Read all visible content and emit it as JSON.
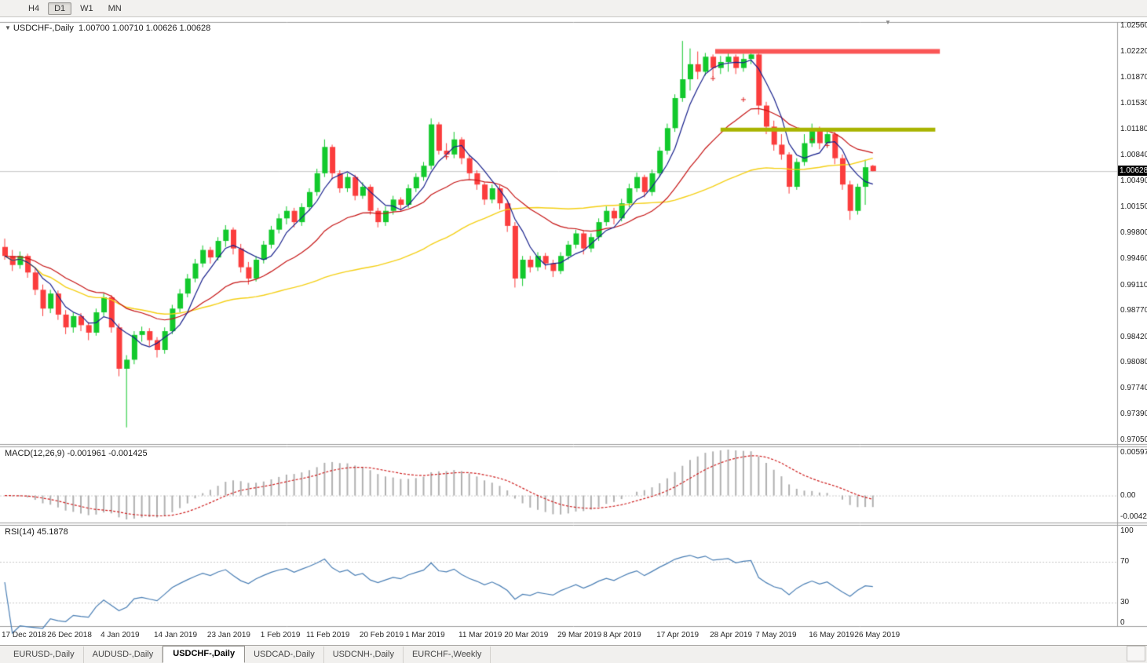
{
  "toolbar": {
    "timeframes": [
      {
        "label": "H4",
        "active": false
      },
      {
        "label": "D1",
        "active": true
      },
      {
        "label": "W1",
        "active": false
      },
      {
        "label": "MN",
        "active": false
      }
    ]
  },
  "chart_data": {
    "type": "candlestick",
    "symbol": "USDCHF",
    "timeframe": "Daily",
    "main_label": "USDCHF-,Daily  1.00700 1.00710 1.00626 1.00628",
    "ohlc_label": {
      "open": "1.00700",
      "high": "1.00710",
      "low": "1.00626",
      "close": "1.00628"
    },
    "current_price": "1.00628",
    "ylim": [
      0.9705,
      1.0256
    ],
    "price_ticks": [
      "1.02560",
      "1.02220",
      "1.01870",
      "1.01530",
      "1.01180",
      "1.00840",
      "1.00490",
      "1.00150",
      "0.99800",
      "0.99460",
      "0.99110",
      "0.98770",
      "0.98420",
      "0.98080",
      "0.97740",
      "0.97390",
      "0.97050"
    ],
    "x_labels": [
      "17 Dec 2018",
      "26 Dec 2018",
      "4 Jan 2019",
      "14 Jan 2019",
      "23 Jan 2019",
      "1 Feb 2019",
      "11 Feb 2019",
      "20 Feb 2019",
      "1 Mar 2019",
      "11 Mar 2019",
      "20 Mar 2019",
      "29 Mar 2019",
      "8 Apr 2019",
      "17 Apr 2019",
      "28 Apr 2019",
      "7 May 2019",
      "16 May 2019",
      "26 May 2019"
    ],
    "x_label_indices": [
      0,
      6,
      13,
      20,
      27,
      34,
      40,
      47,
      53,
      60,
      66,
      73,
      79,
      86,
      93,
      99,
      106,
      112
    ],
    "candles": [
      [
        0.9962,
        0.9973,
        0.9945,
        0.995
      ],
      [
        0.995,
        0.9958,
        0.993,
        0.9938
      ],
      [
        0.9938,
        0.9956,
        0.9933,
        0.995
      ],
      [
        0.995,
        0.9953,
        0.9921,
        0.9928
      ],
      [
        0.9928,
        0.9934,
        0.9898,
        0.9905
      ],
      [
        0.9905,
        0.9912,
        0.987,
        0.988
      ],
      [
        0.988,
        0.9905,
        0.9874,
        0.99
      ],
      [
        0.99,
        0.9904,
        0.9865,
        0.9872
      ],
      [
        0.9872,
        0.9878,
        0.9846,
        0.9855
      ],
      [
        0.9855,
        0.9875,
        0.9848,
        0.987
      ],
      [
        0.987,
        0.9874,
        0.985,
        0.9858
      ],
      [
        0.9858,
        0.9862,
        0.9838,
        0.9848
      ],
      [
        0.9848,
        0.988,
        0.9844,
        0.9875
      ],
      [
        0.9875,
        0.99,
        0.987,
        0.9895
      ],
      [
        0.9895,
        0.9898,
        0.9848,
        0.9855
      ],
      [
        0.9855,
        0.986,
        0.979,
        0.98
      ],
      [
        0.98,
        0.9818,
        0.9722,
        0.9812
      ],
      [
        0.9812,
        0.985,
        0.9806,
        0.9845
      ],
      [
        0.9845,
        0.9856,
        0.9836,
        0.985
      ],
      [
        0.985,
        0.9854,
        0.983,
        0.9838
      ],
      [
        0.9838,
        0.9842,
        0.9815,
        0.9825
      ],
      [
        0.9825,
        0.9855,
        0.982,
        0.985
      ],
      [
        0.985,
        0.9885,
        0.9846,
        0.988
      ],
      [
        0.988,
        0.9906,
        0.9875,
        0.99
      ],
      [
        0.99,
        0.9926,
        0.9895,
        0.992
      ],
      [
        0.992,
        0.9946,
        0.9915,
        0.994
      ],
      [
        0.994,
        0.9964,
        0.9935,
        0.9958
      ],
      [
        0.9958,
        0.9962,
        0.994,
        0.9948
      ],
      [
        0.9948,
        0.9975,
        0.9944,
        0.997
      ],
      [
        0.997,
        0.9991,
        0.9962,
        0.9985
      ],
      [
        0.9985,
        0.9988,
        0.9952,
        0.996
      ],
      [
        0.996,
        0.9966,
        0.9928,
        0.9935
      ],
      [
        0.9935,
        0.9942,
        0.9912,
        0.992
      ],
      [
        0.992,
        0.995,
        0.9916,
        0.9945
      ],
      [
        0.9945,
        0.997,
        0.994,
        0.9965
      ],
      [
        0.9965,
        0.999,
        0.996,
        0.9985
      ],
      [
        0.9985,
        1.0006,
        0.998,
        1.0
      ],
      [
        1.0,
        1.0016,
        0.9992,
        1.001
      ],
      [
        1.001,
        1.0014,
        0.9988,
        0.9995
      ],
      [
        0.9995,
        1.002,
        0.999,
        1.0015
      ],
      [
        1.0015,
        1.004,
        1.001,
        1.0035
      ],
      [
        1.0035,
        1.0066,
        1.003,
        1.006
      ],
      [
        1.006,
        1.0105,
        1.0055,
        1.0095
      ],
      [
        1.0095,
        1.0098,
        1.0052,
        1.006
      ],
      [
        1.006,
        1.0064,
        1.0034,
        1.004
      ],
      [
        1.004,
        1.006,
        1.0035,
        1.0055
      ],
      [
        1.0055,
        1.0058,
        1.0024,
        1.003
      ],
      [
        1.003,
        1.0048,
        1.0026,
        1.0042
      ],
      [
        1.0042,
        1.0045,
        1.0005,
        1.001
      ],
      [
        1.001,
        1.0014,
        0.9988,
        0.9995
      ],
      [
        0.9995,
        1.0016,
        0.999,
        1.001
      ],
      [
        1.001,
        1.003,
        1.0005,
        1.0025
      ],
      [
        1.0025,
        1.0028,
        1.001,
        1.0018
      ],
      [
        1.0018,
        1.0045,
        1.0014,
        1.004
      ],
      [
        1.004,
        1.006,
        1.0035,
        1.0055
      ],
      [
        1.0055,
        1.0075,
        1.005,
        1.007
      ],
      [
        1.007,
        1.0133,
        1.0065,
        1.0125
      ],
      [
        1.0125,
        1.0128,
        1.0085,
        1.009
      ],
      [
        1.009,
        1.01,
        1.0078,
        1.0085
      ],
      [
        1.0085,
        1.0115,
        1.008,
        1.0105
      ],
      [
        1.0105,
        1.0108,
        1.0072,
        1.008
      ],
      [
        1.008,
        1.0085,
        1.0052,
        1.006
      ],
      [
        1.006,
        1.0064,
        1.0038,
        1.0045
      ],
      [
        1.0045,
        1.0048,
        1.0018,
        1.0025
      ],
      [
        1.0025,
        1.0045,
        1.002,
        1.004
      ],
      [
        1.004,
        1.0044,
        1.0012,
        1.002
      ],
      [
        1.002,
        1.0024,
        0.9982,
        0.999
      ],
      [
        0.999,
        0.9995,
        0.9908,
        0.992
      ],
      [
        0.992,
        0.995,
        0.991,
        0.9945
      ],
      [
        0.9945,
        0.995,
        0.9928,
        0.9935
      ],
      [
        0.9935,
        0.9955,
        0.993,
        0.995
      ],
      [
        0.995,
        0.9954,
        0.9932,
        0.994
      ],
      [
        0.994,
        0.9945,
        0.9922,
        0.993
      ],
      [
        0.993,
        0.9955,
        0.9926,
        0.995
      ],
      [
        0.995,
        0.997,
        0.9945,
        0.9965
      ],
      [
        0.9965,
        0.9985,
        0.996,
        0.998
      ],
      [
        0.998,
        0.9984,
        0.9952,
        0.996
      ],
      [
        0.996,
        0.998,
        0.9955,
        0.9975
      ],
      [
        0.9975,
        1.0,
        0.997,
        0.9995
      ],
      [
        0.9995,
        1.0016,
        0.999,
        1.001
      ],
      [
        1.001,
        1.0014,
        0.9992,
        1.0
      ],
      [
        1.0,
        1.0026,
        0.9996,
        1.002
      ],
      [
        1.002,
        1.0046,
        1.0015,
        1.004
      ],
      [
        1.004,
        1.0061,
        1.0035,
        1.0055
      ],
      [
        1.0055,
        1.0058,
        1.0028,
        1.0035
      ],
      [
        1.0035,
        1.0065,
        1.003,
        1.006
      ],
      [
        1.006,
        1.0095,
        1.0055,
        1.009
      ],
      [
        1.009,
        1.0126,
        1.0085,
        1.012
      ],
      [
        1.012,
        1.0165,
        1.0115,
        1.016
      ],
      [
        1.016,
        1.0236,
        1.0155,
        1.0185
      ],
      [
        1.0185,
        1.0226,
        1.017,
        1.0205
      ],
      [
        1.0205,
        1.0222,
        1.0185,
        1.0195
      ],
      [
        1.0195,
        1.022,
        1.019,
        1.0215
      ],
      [
        1.0215,
        1.0218,
        1.0188,
        1.02
      ],
      [
        1.02,
        1.0216,
        1.0192,
        1.0208
      ],
      [
        1.0208,
        1.022,
        1.0195,
        1.0215
      ],
      [
        1.0215,
        1.0218,
        1.0192,
        1.02
      ],
      [
        1.02,
        1.0219,
        1.0195,
        1.0212
      ],
      [
        1.0212,
        1.0224,
        1.0205,
        1.0218
      ],
      [
        1.0218,
        1.0222,
        1.0138,
        1.015
      ],
      [
        1.015,
        1.0155,
        1.0112,
        1.0122
      ],
      [
        1.0122,
        1.013,
        1.009,
        1.0098
      ],
      [
        1.0098,
        1.0112,
        1.0078,
        1.0085
      ],
      [
        1.0085,
        1.0088,
        1.0033,
        1.0042
      ],
      [
        1.0042,
        1.008,
        1.0038,
        1.0075
      ],
      [
        1.0075,
        1.0112,
        1.007,
        1.01
      ],
      [
        1.01,
        1.0126,
        1.0095,
        1.0118
      ],
      [
        1.0118,
        1.0122,
        1.0092,
        1.01
      ],
      [
        1.01,
        1.0118,
        1.0094,
        1.0112
      ],
      [
        1.0112,
        1.0115,
        1.0072,
        1.008
      ],
      [
        1.008,
        1.0085,
        1.0038,
        1.0045
      ],
      [
        1.0045,
        1.005,
        0.9998,
        1.001
      ],
      [
        1.001,
        1.0046,
        1.0005,
        1.0042
      ],
      [
        1.0042,
        1.0078,
        1.0018,
        1.0068
      ],
      [
        1.007,
        1.0071,
        1.00626,
        1.00628
      ]
    ],
    "colors": {
      "up": "#12c92c",
      "down": "#fb3d3d",
      "ma_fast": "#17208c",
      "ma_mid": "#c61414",
      "ma_slow": "#f5d016",
      "current_line": "#c6c6c6",
      "panel_border": "#9c9c9c"
    },
    "moving_averages": [
      {
        "name": "fast",
        "type": "sma",
        "period": 5,
        "color": "#17208c"
      },
      {
        "name": "mid",
        "type": "ema",
        "period": 20,
        "color": "#c61414"
      },
      {
        "name": "slow",
        "type": "sma",
        "period": 45,
        "color": "#f5d016"
      }
    ],
    "hlines": [
      {
        "name": "resistance",
        "price": 1.0222,
        "i0": 93.3,
        "i1": 122.8,
        "color": "#fa5555",
        "width": 6
      },
      {
        "name": "support",
        "price": 1.0118,
        "i0": 94.0,
        "i1": 122.2,
        "color": "#a9b400",
        "width": 5
      }
    ],
    "plus_markers": [
      {
        "i": 58,
        "p": 1.0082
      },
      {
        "i": 93,
        "p": 1.0186
      },
      {
        "i": 97,
        "p": 1.0158
      },
      {
        "i": 106,
        "p": 1.0105
      },
      {
        "i": 108,
        "p": 1.0097
      }
    ],
    "macd": {
      "label": "MACD(12,26,9) -0.001961 -0.001425",
      "fast": 12,
      "slow": 26,
      "signal": 9,
      "values": [
        "-0.001961",
        "-0.001425"
      ],
      "axis_ticks": [
        "0.00597",
        "0.00",
        "-0.004243"
      ],
      "histogram_color": "#b0b0b0",
      "signal_color": "#cf2020"
    },
    "rsi": {
      "label": "RSI(14) 45.1878",
      "period": 14,
      "value": "45.1878",
      "axis_ticks": [
        "100",
        "70",
        "30",
        "0"
      ],
      "levels": [
        70,
        30
      ],
      "color": "#4a7fb5",
      "level_color": "#c8c8c8"
    }
  },
  "tabs": [
    {
      "label": "EURUSD-,Daily",
      "active": false
    },
    {
      "label": "AUDUSD-,Daily",
      "active": false
    },
    {
      "label": "USDCHF-,Daily",
      "active": true
    },
    {
      "label": "USDCAD-,Daily",
      "active": false
    },
    {
      "label": "USDCNH-,Daily",
      "active": false
    },
    {
      "label": "EURCHF-,Weekly",
      "active": false
    }
  ]
}
